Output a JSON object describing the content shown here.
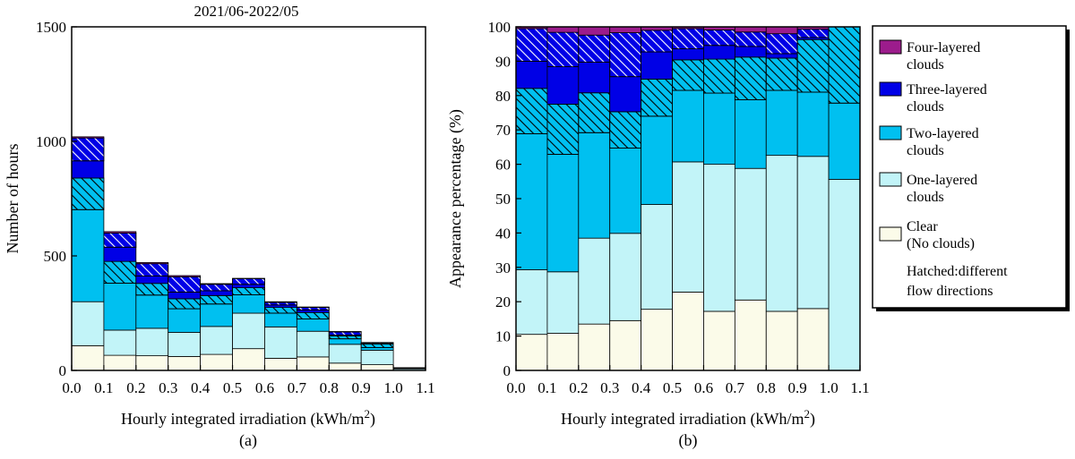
{
  "chart_data": [
    {
      "type": "bar",
      "stacked": true,
      "panel_label": "(a)",
      "title": "2021/06-2022/05",
      "xlabel": "Hourly integrated irradiation (kWh/m",
      "xlabel_sup": "2",
      "xlabel_close": ")",
      "ylabel": "Number of hours",
      "xlim": [
        0.0,
        1.1
      ],
      "ylim": [
        0,
        1500
      ],
      "x_ticks": [
        "0.0",
        "0.1",
        "0.2",
        "0.3",
        "0.4",
        "0.5",
        "0.6",
        "0.7",
        "0.8",
        "0.9",
        "1.0",
        "1.1"
      ],
      "y_ticks": [
        "0",
        "500",
        "1000",
        "1500"
      ],
      "bin_edges": [
        0.0,
        0.1,
        0.2,
        0.3,
        0.4,
        0.5,
        0.6,
        0.7,
        0.8,
        0.9,
        1.0,
        1.1
      ],
      "series": [
        {
          "name": "Clear",
          "hatched": false,
          "values": [
            108,
            66,
            64,
            61,
            70,
            95,
            53,
            59,
            32,
            25,
            0
          ]
        },
        {
          "name": "One-layered",
          "hatched": false,
          "values": [
            192,
            110,
            120,
            105,
            122,
            155,
            137,
            112,
            82,
            63,
            7
          ]
        },
        {
          "name": "Two-layered",
          "hatched": false,
          "values": [
            402,
            205,
            145,
            103,
            98,
            80,
            60,
            54,
            24,
            12,
            2
          ]
        },
        {
          "name": "Two-layered hatched",
          "hatched": true,
          "values": [
            138,
            95,
            51,
            44,
            37,
            31,
            25,
            28,
            13,
            15,
            3
          ]
        },
        {
          "name": "Three-layered",
          "hatched": false,
          "values": [
            75,
            62,
            32,
            29,
            21,
            15,
            11,
            11,
            3,
            2,
            0
          ]
        },
        {
          "name": "Three-layered hatched",
          "hatched": true,
          "values": [
            100,
            62,
            54,
            67,
            28,
            25,
            11,
            11,
            14,
            4,
            0
          ]
        },
        {
          "name": "Four-layered",
          "hatched": false,
          "values": [
            5,
            6,
            5,
            5,
            3,
            1,
            3,
            2,
            2,
            1,
            0
          ]
        }
      ]
    },
    {
      "type": "bar",
      "stacked": true,
      "panel_label": "(b)",
      "xlabel": "Hourly integrated irradiation (kWh/m",
      "xlabel_sup": "2",
      "xlabel_close": ")",
      "ylabel": "Appearance percentage (%)",
      "xlim": [
        0.0,
        1.1
      ],
      "ylim": [
        0,
        100
      ],
      "x_ticks": [
        "0.0",
        "0.1",
        "0.2",
        "0.3",
        "0.4",
        "0.5",
        "0.6",
        "0.7",
        "0.8",
        "0.9",
        "1.0",
        "1.1"
      ],
      "y_ticks": [
        "0",
        "10",
        "20",
        "30",
        "40",
        "50",
        "60",
        "70",
        "80",
        "90",
        "100"
      ],
      "bin_edges": [
        0.0,
        0.1,
        0.2,
        0.3,
        0.4,
        0.5,
        0.6,
        0.7,
        0.8,
        0.9,
        1.0,
        1.1
      ],
      "series": [
        {
          "name": "Clear",
          "hatched": false,
          "values": [
            10.5,
            10.8,
            13.5,
            14.5,
            17.8,
            22.8,
            17.2,
            20.5,
            17.2,
            18.0,
            0
          ]
        },
        {
          "name": "One-layered",
          "hatched": false,
          "values": [
            18.8,
            17.9,
            25.0,
            25.4,
            30.5,
            37.9,
            42.8,
            38.3,
            45.4,
            44.3,
            55.6
          ]
        },
        {
          "name": "Two-layered",
          "hatched": false,
          "values": [
            39.6,
            34.2,
            30.7,
            24.8,
            25.7,
            20.8,
            20.7,
            20.0,
            18.9,
            18.7,
            22.2
          ]
        },
        {
          "name": "Two-layered hatched",
          "hatched": true,
          "values": [
            13.2,
            14.6,
            11.6,
            10.6,
            10.8,
            8.9,
            9.9,
            12.4,
            9.4,
            15.3,
            22.2
          ]
        },
        {
          "name": "Three-layered",
          "hatched": false,
          "values": [
            7.9,
            10.9,
            8.9,
            10.2,
            7.9,
            3.2,
            4.0,
            3.1,
            1.3,
            0.6,
            0
          ]
        },
        {
          "name": "Three-layered hatched",
          "hatched": true,
          "values": [
            9.5,
            10.0,
            7.9,
            12.8,
            6.3,
            5.9,
            4.5,
            4.2,
            5.8,
            2.4,
            0
          ]
        },
        {
          "name": "Four-layered",
          "hatched": false,
          "values": [
            0.5,
            1.6,
            2.4,
            1.7,
            1.0,
            0.5,
            0.9,
            1.5,
            2.0,
            0.7,
            0
          ]
        }
      ]
    }
  ],
  "legend": {
    "entries": [
      {
        "key": "four",
        "line1": "Four-layered",
        "line2": "clouds",
        "color": "#9c1c8c"
      },
      {
        "key": "three",
        "line1": "Three-layered",
        "line2": "clouds",
        "color": "#0000e6"
      },
      {
        "key": "two",
        "line1": "Two-layered",
        "line2": "clouds",
        "color": "#00c0f0"
      },
      {
        "key": "one",
        "line1": "One-layered",
        "line2": "clouds",
        "color": "#c2f4f8"
      },
      {
        "key": "clear",
        "line1": "Clear",
        "line2": "(No clouds)",
        "color": "#fbfbe9"
      }
    ],
    "note_line1": "Hatched:different",
    "note_line2": "flow directions"
  },
  "colors": {
    "clear": "#fbfbe9",
    "one": "#c2f4f8",
    "two": "#00c0f0",
    "three": "#0000e6",
    "four": "#9c1c8c"
  }
}
